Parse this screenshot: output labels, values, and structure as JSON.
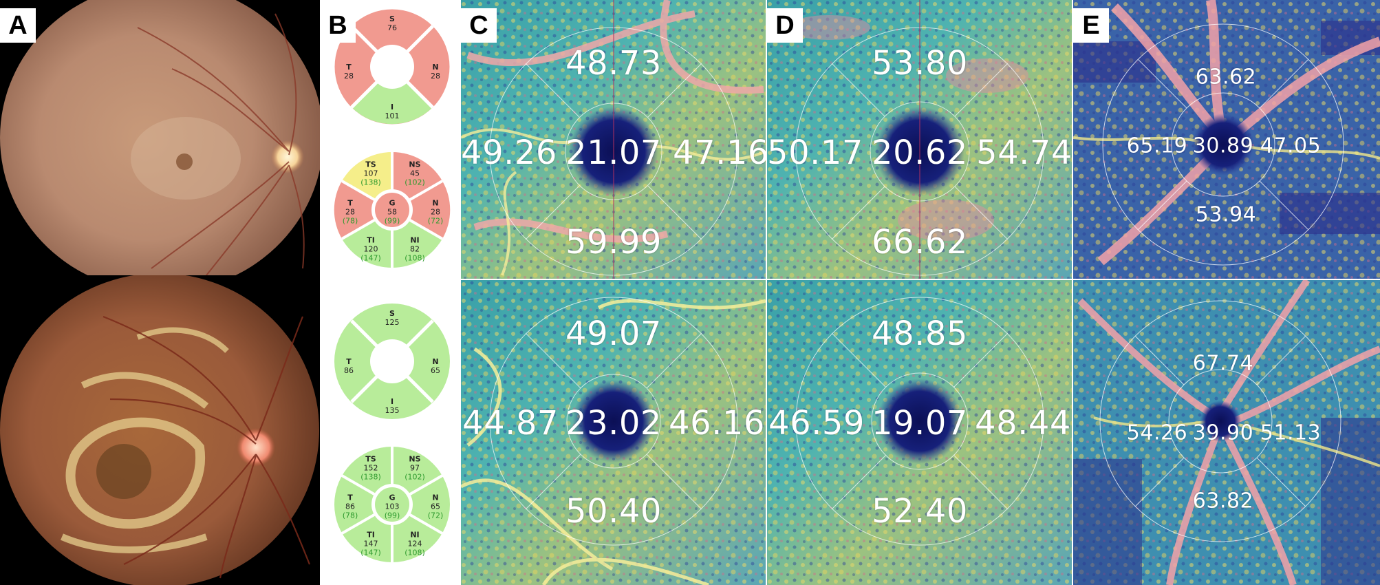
{
  "panels": {
    "a": {
      "label": "A"
    },
    "b": {
      "label": "B",
      "rnfl_top": {
        "s": {
          "label": "S",
          "value": "76"
        },
        "t": {
          "label": "T",
          "value": "28"
        },
        "n": {
          "label": "N",
          "value": "28"
        },
        "i": {
          "label": "I",
          "value": "101"
        }
      },
      "gcl_top": {
        "ts": {
          "label": "TS",
          "value": "107",
          "ref": "(138)"
        },
        "ns": {
          "label": "NS",
          "value": "45",
          "ref": "(102)"
        },
        "t": {
          "label": "T",
          "value": "28",
          "ref": "(78)"
        },
        "g": {
          "label": "G",
          "value": "58",
          "ref": "(99)"
        },
        "n": {
          "label": "N",
          "value": "28",
          "ref": "(72)"
        },
        "ti": {
          "label": "TI",
          "value": "120",
          "ref": "(147)"
        },
        "ni": {
          "label": "NI",
          "value": "82",
          "ref": "(108)"
        }
      },
      "rnfl_bottom": {
        "s": {
          "label": "S",
          "value": "125"
        },
        "t": {
          "label": "T",
          "value": "86"
        },
        "n": {
          "label": "N",
          "value": "65"
        },
        "i": {
          "label": "I",
          "value": "135"
        }
      },
      "gcl_bottom": {
        "ts": {
          "label": "TS",
          "value": "152",
          "ref": "(138)"
        },
        "ns": {
          "label": "NS",
          "value": "97",
          "ref": "(102)"
        },
        "t": {
          "label": "T",
          "value": "86",
          "ref": "(78)"
        },
        "g": {
          "label": "G",
          "value": "103",
          "ref": "(99)"
        },
        "n": {
          "label": "N",
          "value": "65",
          "ref": "(72)"
        },
        "ti": {
          "label": "TI",
          "value": "147",
          "ref": "(147)"
        },
        "ni": {
          "label": "NI",
          "value": "124",
          "ref": "(108)"
        }
      },
      "colors": {
        "abnormal": "#f19a90",
        "borderline": "#f5ee8a",
        "normal": "#b8ec9a"
      }
    },
    "c": {
      "label": "C",
      "top": {
        "superior": "48.73",
        "temporal": "49.26",
        "center": "21.07",
        "nasal": "47.16",
        "inferior": "59.99"
      },
      "bottom": {
        "superior": "49.07",
        "temporal": "44.87",
        "center": "23.02",
        "nasal": "46.16",
        "inferior": "50.40"
      }
    },
    "d": {
      "label": "D",
      "top": {
        "superior": "53.80",
        "temporal": "50.17",
        "center": "20.62",
        "nasal": "54.74",
        "inferior": "66.62"
      },
      "bottom": {
        "superior": "48.85",
        "temporal": "46.59",
        "center": "19.07",
        "nasal": "48.44",
        "inferior": "52.40"
      }
    },
    "e": {
      "label": "E",
      "top": {
        "superior": "63.62",
        "temporal": "65.19",
        "center": "30.89",
        "nasal": "47.05",
        "inferior": "53.94"
      },
      "bottom": {
        "superior": "67.74",
        "temporal": "54.26",
        "center": "39.90",
        "nasal": "51.13",
        "inferior": "63.82"
      }
    }
  }
}
